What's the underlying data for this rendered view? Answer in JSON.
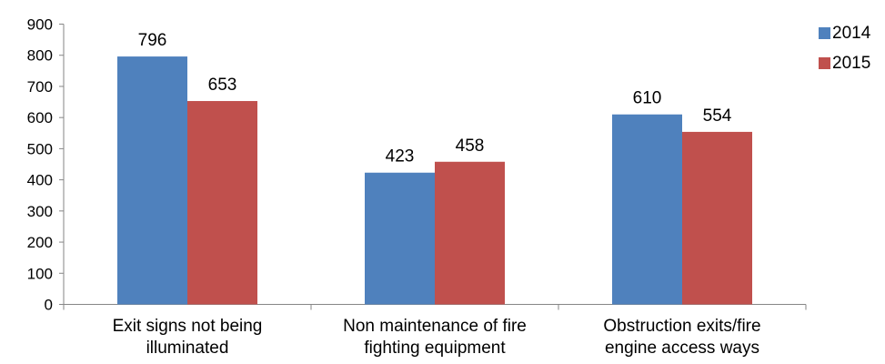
{
  "chart_data": {
    "type": "bar",
    "categories": [
      [
        "Exit signs not being",
        "illuminated"
      ],
      [
        "Non maintenance of fire",
        "fighting equipment"
      ],
      [
        "Obstruction exits/fire",
        "engine access ways"
      ]
    ],
    "series": [
      {
        "name": "2014",
        "values": [
          796,
          423,
          610
        ],
        "color": "#4F81BD"
      },
      {
        "name": "2015",
        "values": [
          653,
          458,
          554
        ],
        "color": "#C0504D"
      }
    ],
    "y_ticks": [
      "0",
      "100",
      "200",
      "300",
      "400",
      "500",
      "600",
      "700",
      "800",
      "900"
    ],
    "ylim": [
      0,
      900
    ],
    "grid": false,
    "legend_position": "top-right",
    "data_labels": true
  }
}
